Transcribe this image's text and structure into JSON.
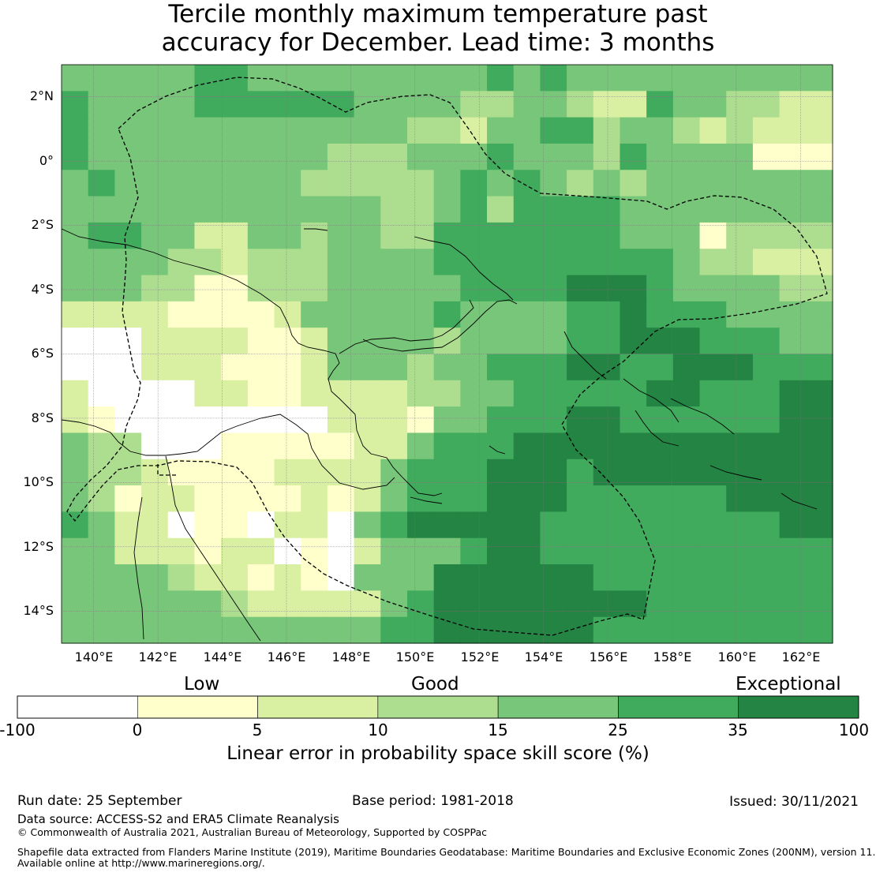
{
  "title": {
    "line1": "Tercile monthly maximum temperature past",
    "line2": "accuracy for December. Lead time: 3 months"
  },
  "map": {
    "lat_labels": [
      "2°N",
      "0°",
      "2°S",
      "4°S",
      "6°S",
      "8°S",
      "10°S",
      "12°S",
      "14°S"
    ],
    "lon_labels": [
      "140°E",
      "142°E",
      "144°E",
      "146°E",
      "148°E",
      "150°E",
      "152°E",
      "154°E",
      "156°E",
      "158°E",
      "160°E",
      "162°E"
    ],
    "extent": {
      "lon_min": 139,
      "lon_max": 163,
      "lat_min": -15,
      "lat_max": 3
    },
    "grid_resolution_deg": 0.83
  },
  "legend": {
    "categories": [
      "Low",
      "Good",
      "Exceptional"
    ],
    "ticks": [
      "-100",
      "0",
      "5",
      "10",
      "15",
      "25",
      "35",
      "100"
    ],
    "colors": [
      "#ffffff",
      "#ffffcc",
      "#d9f0a3",
      "#addd8e",
      "#78c679",
      "#41ab5d",
      "#238443"
    ],
    "title": "Linear error in probability space skill score (%)"
  },
  "footer": {
    "run_date": "Run date: 25 September",
    "base_period": "Base period: 1981-2018",
    "issued": "Issued: 30/11/2021",
    "data_source": "Data source: ACCESS-S2 and ERA5 Climate Reanalysis",
    "copyright": "© Commonwealth of Australia 2021, Australian Bureau of Meteorology, Supported by COSPPac",
    "shapefile_line1": "Shapefile data extracted from Flanders Marine Institute (2019), Maritime Boundaries Geodatabase: Maritime Boundaries and Exclusive Economic Zones (200NM), version 11.",
    "shapefile_line2": "Available online at http://www.marineregions.org/."
  }
}
